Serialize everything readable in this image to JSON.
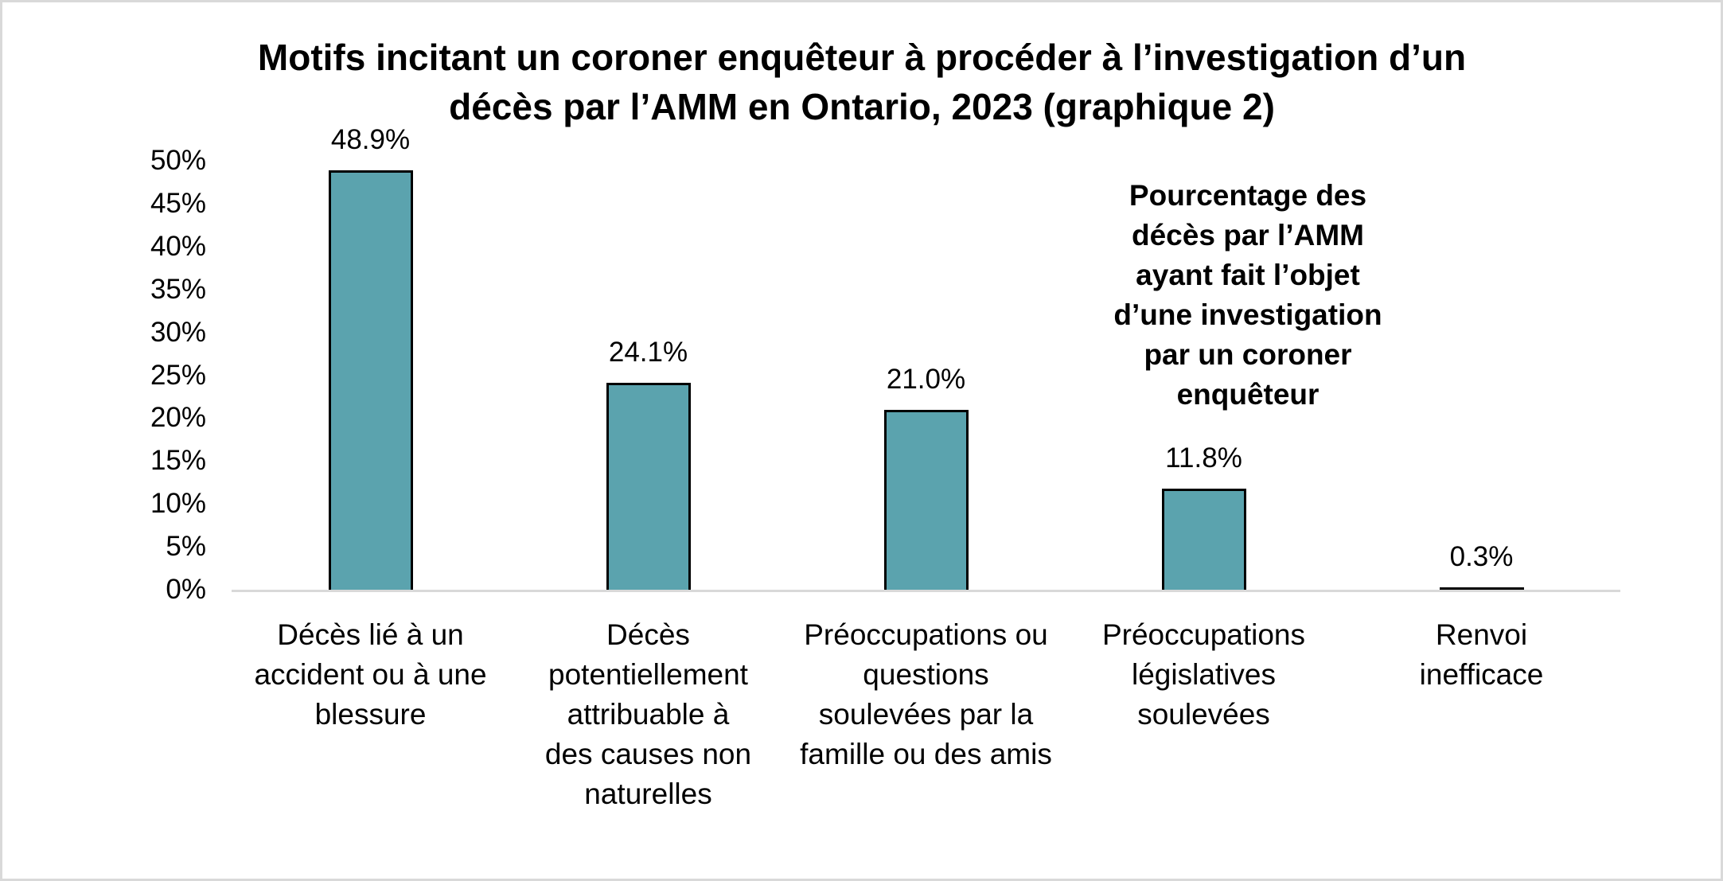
{
  "chart_data": {
    "type": "bar",
    "title": "Motifs incitant un coroner enquêteur à procéder à l’investigation d’un décès par l’AMM en Ontario, 2023 (graphique 2)",
    "title_lines": [
      "Motifs incitant un coroner enquêteur à procéder à l’investigation d’un",
      "décès par l’AMM en Ontario, 2023 (graphique 2)"
    ],
    "categories": [
      "Décès lié à un accident ou à une blessure",
      "Décès potentiellement attribuable à des causes non naturelles",
      "Préoccupations ou questions soulevées par la famille ou des amis",
      "Préoccupations législatives soulevées",
      "Renvoi inefficace"
    ],
    "category_lines": [
      [
        "Décès lié à un",
        "accident ou à une",
        "blessure"
      ],
      [
        "Décès",
        "potentiellement",
        "attribuable à",
        "des causes non",
        "naturelles"
      ],
      [
        "Préoccupations ou",
        "questions",
        "soulevées par la",
        "famille ou des amis"
      ],
      [
        "Préoccupations",
        "législatives",
        "soulevées"
      ],
      [
        "Renvoi",
        "inefficace"
      ]
    ],
    "values": [
      48.9,
      24.1,
      21.0,
      11.8,
      0.3
    ],
    "value_labels": [
      "48.9%",
      "24.1%",
      "21.0%",
      "11.8%",
      "0.3%"
    ],
    "series": [
      {
        "name": "Pourcentage des décès par l’AMM ayant fait l’objet d’une investigation par un coroner enquêteur",
        "values": [
          48.9,
          24.1,
          21.0,
          11.8,
          0.3
        ],
        "color": "#5ba3ae"
      }
    ],
    "annotation": "Pourcentage des décès par l’AMM ayant fait l’objet d’une investigation par un coroner enquêteur",
    "annotation_lines": [
      "Pourcentage des",
      "décès par l’AMM",
      "ayant fait l’objet",
      "d’une investigation",
      "par un coroner",
      "enquêteur"
    ],
    "xlabel": "",
    "ylabel": "",
    "ylim": [
      0,
      50
    ],
    "yticks": [
      "0%",
      "5%",
      "10%",
      "15%",
      "20%",
      "25%",
      "30%",
      "35%",
      "40%",
      "45%",
      "50%"
    ],
    "grid": false,
    "legend": "none",
    "colors": {
      "bar_fill": "#5ba3ae",
      "bar_outline": "#000000",
      "axis_line": "#d9d9d9",
      "frame": "#d9d9d9"
    }
  }
}
